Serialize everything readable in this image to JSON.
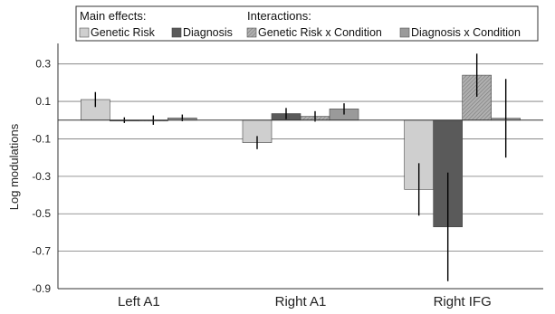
{
  "chart_data": {
    "type": "bar",
    "ylabel": "Log modulations",
    "xlabel": "",
    "ylim": [
      -0.9,
      0.4
    ],
    "yticks": [
      -0.9,
      -0.7,
      -0.5,
      -0.3,
      -0.1,
      0.1,
      0.3
    ],
    "ytick_labels": [
      "-0.9",
      "-0.7",
      "-0.5",
      "-0.3",
      "-0.1",
      "0.1",
      "0.3"
    ],
    "grid": true,
    "categories": [
      "Left A1",
      "Right A1",
      "Right IFG"
    ],
    "legend": {
      "placement": "top",
      "groups": [
        {
          "heading": "Main effects:",
          "entries": [
            "Genetic Risk",
            "Diagnosis"
          ]
        },
        {
          "heading": "Interactions:",
          "entries": [
            "Genetic Risk x Condition",
            "Diagnosis x Condition"
          ]
        }
      ]
    },
    "series": [
      {
        "name": "Genetic Risk",
        "color": "#cfcfcf",
        "pattern": "solid",
        "values": [
          0.11,
          -0.12,
          -0.37
        ],
        "error": [
          0.04,
          0.035,
          0.14
        ]
      },
      {
        "name": "Diagnosis",
        "color": "#5a5a5a",
        "pattern": "solid",
        "values": [
          0.0,
          0.035,
          -0.57
        ],
        "error": [
          0.015,
          0.03,
          0.29
        ]
      },
      {
        "name": "Genetic Risk x Condition",
        "color": "#9a9a9a",
        "pattern": "hatched",
        "values": [
          0.0,
          0.02,
          0.24
        ],
        "error": [
          0.025,
          0.028,
          0.115
        ]
      },
      {
        "name": "Diagnosis x Condition",
        "color": "#9a9a9a",
        "pattern": "solid",
        "values": [
          0.012,
          0.06,
          0.01
        ],
        "error": [
          0.018,
          0.03,
          0.21
        ]
      }
    ]
  }
}
